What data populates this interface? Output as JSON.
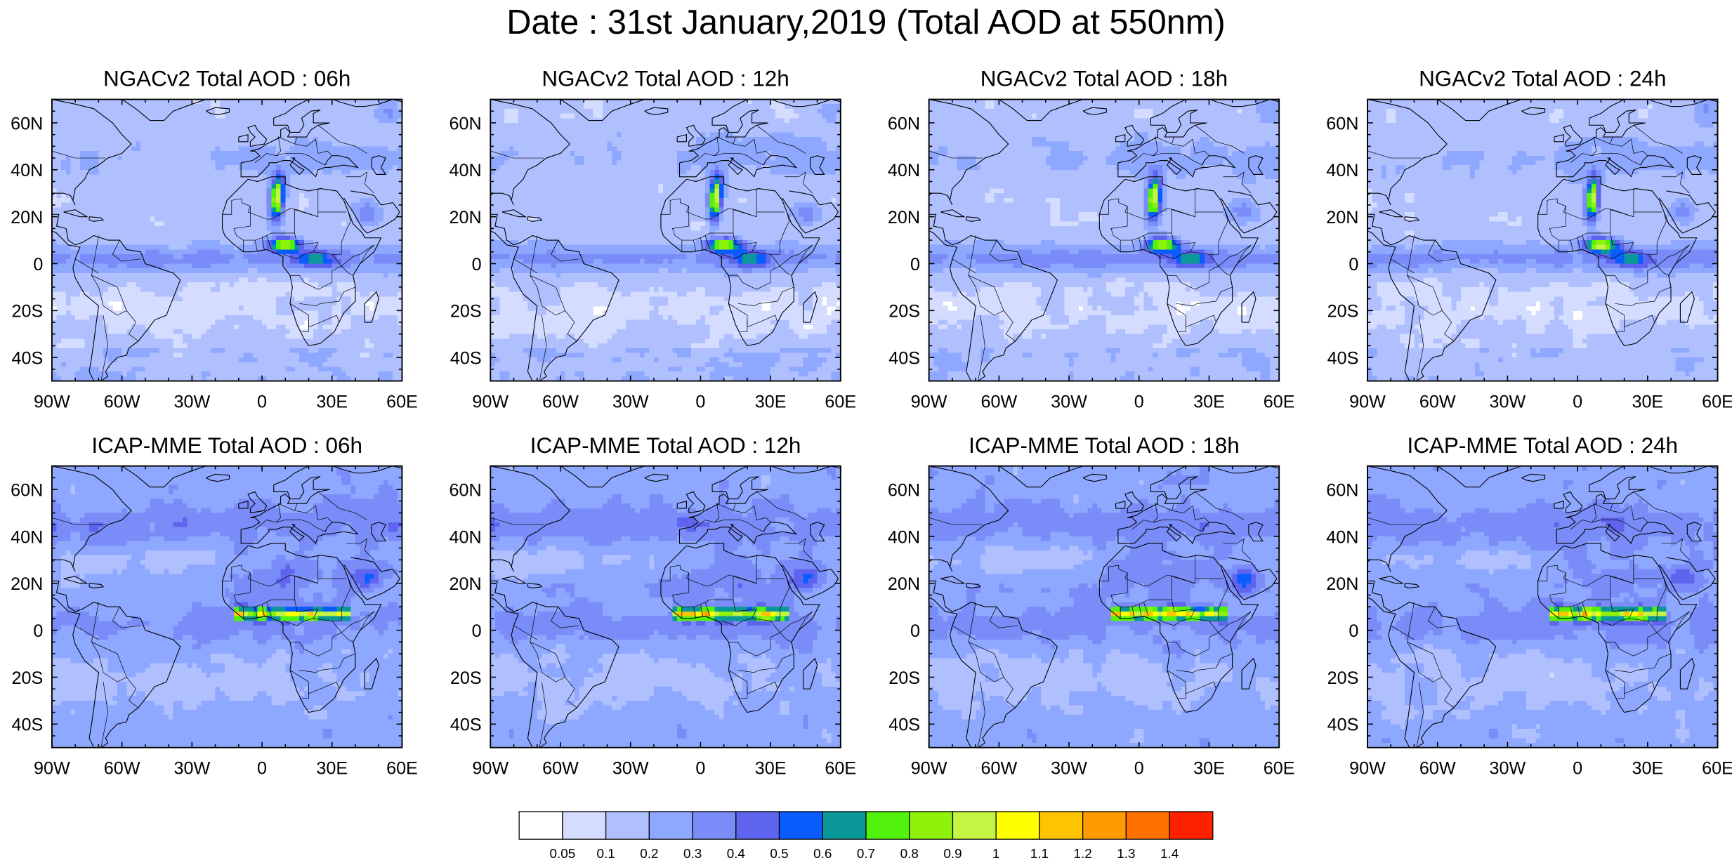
{
  "main_title": "Date : 31st January,2019 (Total AOD at 550nm)",
  "panels": [
    {
      "title": "NGACv2 Total AOD : 06h",
      "model": "NGACv2",
      "hour": "06h"
    },
    {
      "title": "NGACv2 Total AOD : 12h",
      "model": "NGACv2",
      "hour": "12h"
    },
    {
      "title": "NGACv2 Total AOD : 18h",
      "model": "NGACv2",
      "hour": "18h"
    },
    {
      "title": "NGACv2 Total AOD : 24h",
      "model": "NGACv2",
      "hour": "24h"
    },
    {
      "title": "ICAP-MME Total AOD : 06h",
      "model": "ICAP-MME",
      "hour": "06h"
    },
    {
      "title": "ICAP-MME Total AOD : 12h",
      "model": "ICAP-MME",
      "hour": "12h"
    },
    {
      "title": "ICAP-MME Total AOD : 18h",
      "model": "ICAP-MME",
      "hour": "18h"
    },
    {
      "title": "ICAP-MME Total AOD : 24h",
      "model": "ICAP-MME",
      "hour": "24h"
    }
  ],
  "map": {
    "lon_range": [
      -90,
      60
    ],
    "lat_range": [
      -50,
      70
    ],
    "lon_ticks": [
      "90W",
      "60W",
      "30W",
      "0",
      "30E",
      "60E"
    ],
    "lat_ticks": [
      "60N",
      "40N",
      "20N",
      "0",
      "20S",
      "40S"
    ]
  },
  "colorbar": {
    "colors": [
      "#ffffff",
      "#d4dcff",
      "#b0c0ff",
      "#8fa8ff",
      "#7a8cf8",
      "#5f64ee",
      "#0a5cff",
      "#0b9898",
      "#52f20c",
      "#8ef20a",
      "#c4f542",
      "#ffff00",
      "#ffc400",
      "#ff9b00",
      "#ff7000",
      "#ff2200"
    ],
    "labels": [
      "0.05",
      "0.1",
      "0.2",
      "0.3",
      "0.4",
      "0.5",
      "0.6",
      "0.7",
      "0.8",
      "0.9",
      "1",
      "1.1",
      "1.2",
      "1.3",
      "1.4"
    ]
  }
}
